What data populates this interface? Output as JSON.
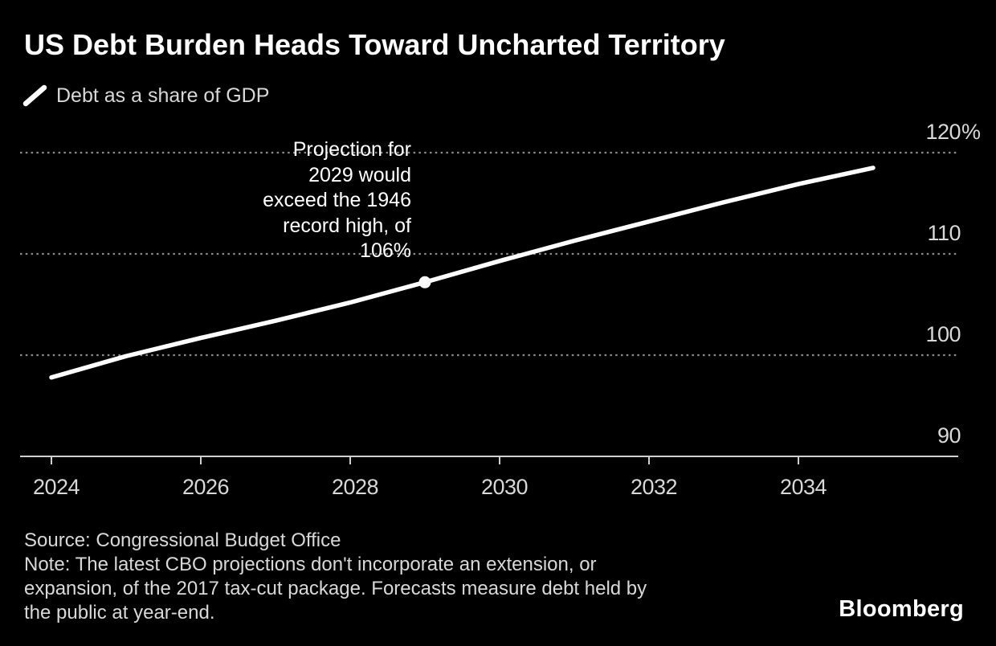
{
  "chart_data": {
    "type": "line",
    "title": "US Debt Burden Heads Toward Uncharted Territory",
    "series": [
      {
        "name": "Debt as a share of GDP",
        "years": [
          2024,
          2025,
          2026,
          2027,
          2028,
          2029,
          2030,
          2031,
          2032,
          2033,
          2034,
          2035
        ],
        "values": [
          97.8,
          99.9,
          101.7,
          103.4,
          105.2,
          107.2,
          109.3,
          111.3,
          113.2,
          115.1,
          116.9,
          118.5
        ]
      }
    ],
    "marker_point": {
      "year": 2029,
      "value": 107.2
    },
    "annotation": "Projection for\n2029 would\nexceed the 1946\nrecord high, of\n106%",
    "x_ticks": [
      2024,
      2026,
      2028,
      2030,
      2032,
      2034
    ],
    "y_ticks": [
      {
        "value": 120,
        "label": "120",
        "suffix": "%"
      },
      {
        "value": 110,
        "label": "110",
        "suffix": ""
      },
      {
        "value": 100,
        "label": "100",
        "suffix": ""
      },
      {
        "value": 90,
        "label": "90",
        "suffix": ""
      }
    ],
    "ylim": [
      90,
      122
    ],
    "xlim": [
      2023.6,
      2036.1
    ],
    "grid": "horizontal dotted gridlines, solid baseline",
    "legend_position": "top-left",
    "colors": {
      "background": "#000000",
      "line": "#ffffff",
      "grid": "#8b8b8b",
      "axis": "#cfcfcf",
      "labels": "#d8d8d8",
      "annotation": "#ffffff"
    }
  },
  "footer": {
    "source": "Source: Congressional Budget Office",
    "note": "Note: The latest CBO projections don't incorporate an extension, or\nexpansion, of the 2017 tax-cut package. Forecasts measure debt held by\nthe public at year-end.",
    "brand": "Bloomberg"
  }
}
